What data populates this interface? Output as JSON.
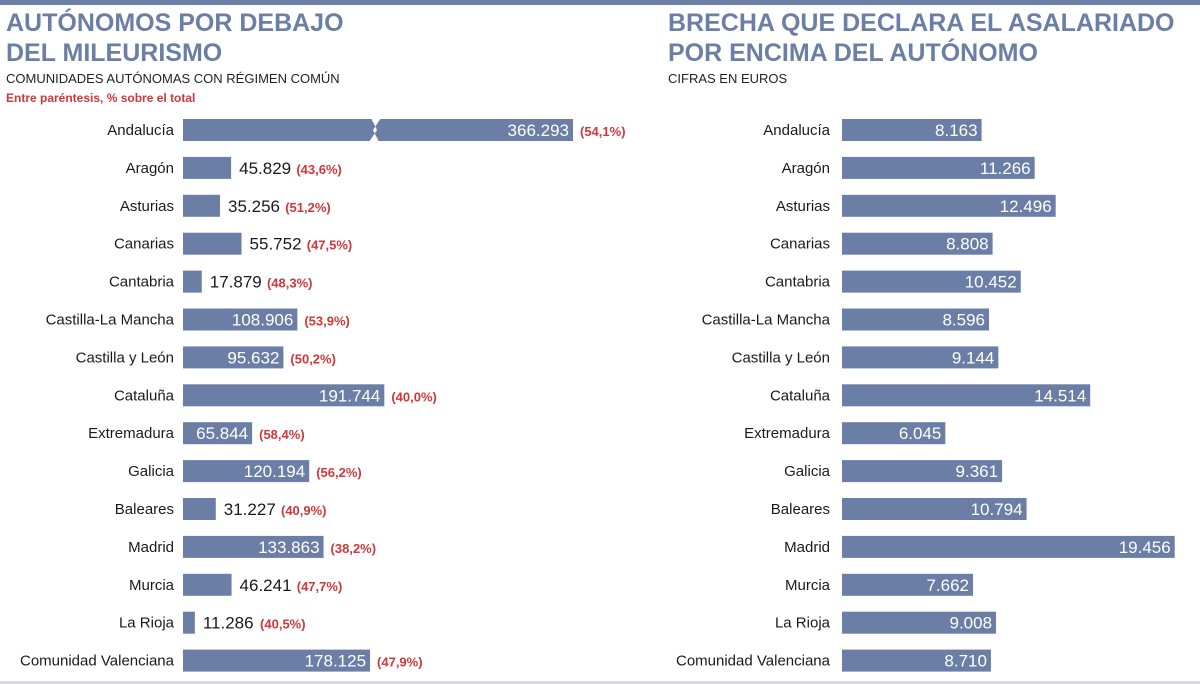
{
  "chart_data": [
    {
      "type": "bar",
      "orientation": "horizontal",
      "title_lines": [
        "AUTÓNOMOS POR DEBAJO",
        "DEL MILEURISMO"
      ],
      "subtitle": "COMUNIDADES AUTÓNOMAS CON RÉGIMEN COMÚN",
      "note": "Entre paréntesis, % sobre el total",
      "categories": [
        "Andalucía",
        "Aragón",
        "Asturias",
        "Canarias",
        "Cantabria",
        "Castilla-La Mancha",
        "Castilla y León",
        "Cataluña",
        "Extremadura",
        "Galicia",
        "Baleares",
        "Madrid",
        "Murcia",
        "La Rioja",
        "Comunidad Valenciana"
      ],
      "values": [
        366293,
        45829,
        35256,
        55752,
        17879,
        108906,
        95632,
        191744,
        65844,
        120194,
        31227,
        133863,
        46241,
        11286,
        178125
      ],
      "value_labels": [
        "366.293",
        "45.829",
        "35.256",
        "55.752",
        "17.879",
        "108.906",
        "95.632",
        "191.744",
        "65.844",
        "120.194",
        "31.227",
        "133.863",
        "46.241",
        "11.286",
        "178.125"
      ],
      "percent_labels": [
        "(54,1%)",
        "(43,6%)",
        "(51,2%)",
        "(47,5%)",
        "(48,3%)",
        "(53,9%)",
        "(50,2%)",
        "(40,0%)",
        "(58,4%)",
        "(56,2%)",
        "(40,9%)",
        "(38,2%)",
        "(47,7%)",
        "(40,5%)",
        "(47,9%)"
      ],
      "broken_axis_category": "Andalucía",
      "grid": false,
      "legend": "none",
      "bar_color": "#6b7ea6",
      "value_label_color": "#ffffff",
      "outside_label_color": "#1a1a1a",
      "percent_color": "#d0373a"
    },
    {
      "type": "bar",
      "orientation": "horizontal",
      "title_lines": [
        "BRECHA QUE DECLARA EL ASALARIADO",
        "POR ENCIMA DEL AUTÓNOMO"
      ],
      "subtitle": "CIFRAS EN EUROS",
      "categories": [
        "Andalucía",
        "Aragón",
        "Asturias",
        "Canarias",
        "Cantabria",
        "Castilla-La Mancha",
        "Castilla y León",
        "Cataluña",
        "Extremadura",
        "Galicia",
        "Baleares",
        "Madrid",
        "Murcia",
        "La Rioja",
        "Comunidad Valenciana"
      ],
      "values": [
        8163,
        11266,
        12496,
        8808,
        10452,
        8596,
        9144,
        14514,
        6045,
        9361,
        10794,
        19456,
        7662,
        9008,
        8710
      ],
      "value_labels": [
        "8.163",
        "11.266",
        "12.496",
        "8.808",
        "10.452",
        "8.596",
        "9.144",
        "14.514",
        "6.045",
        "9.361",
        "10.794",
        "19.456",
        "7.662",
        "9.008",
        "8.710"
      ],
      "grid": false,
      "legend": "none",
      "bar_color": "#6b7ea6",
      "value_label_color": "#ffffff"
    }
  ]
}
